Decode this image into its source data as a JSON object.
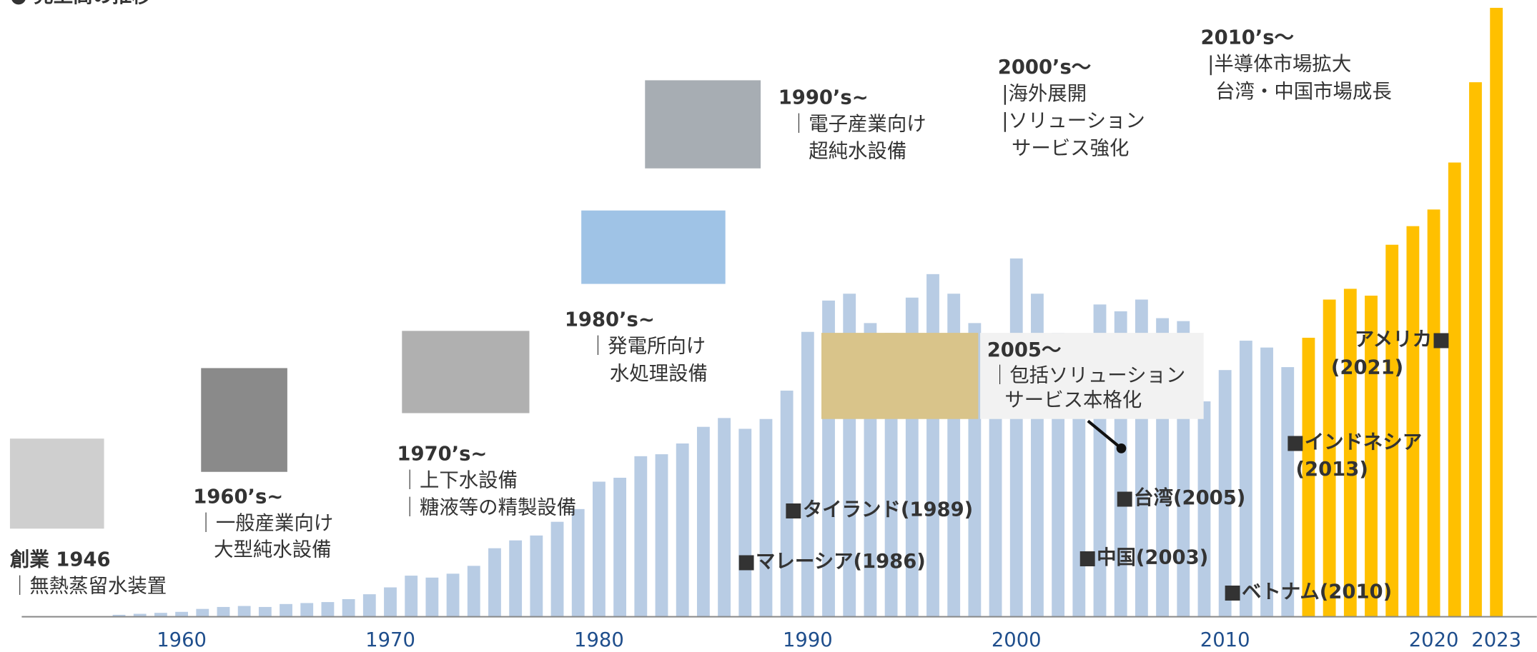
{
  "chart_data": {
    "type": "bar",
    "title": "● 売上高の推移",
    "x": [
      1957,
      1958,
      1959,
      1960,
      1961,
      1962,
      1963,
      1964,
      1965,
      1966,
      1967,
      1968,
      1969,
      1970,
      1971,
      1972,
      1973,
      1974,
      1975,
      1976,
      1977,
      1978,
      1979,
      1980,
      1981,
      1982,
      1983,
      1984,
      1985,
      1986,
      1987,
      1988,
      1989,
      1990,
      1991,
      1992,
      1993,
      1994,
      1995,
      1996,
      1997,
      1998,
      1999,
      2000,
      2001,
      2002,
      2003,
      2004,
      2005,
      2006,
      2007,
      2008,
      2009,
      2010,
      2011,
      2012,
      2013,
      2014,
      2015,
      2016,
      2017,
      2018,
      2019,
      2020,
      2021,
      2022,
      2023
    ],
    "xlim": [
      1956,
      2024
    ],
    "xticks": [
      1960,
      1970,
      1980,
      1990,
      2000,
      2010,
      2020,
      2023
    ],
    "ylim": [
      0,
      630
    ],
    "series": [
      {
        "color": "#b8cce4",
        "values": [
          2,
          3,
          4,
          5,
          8,
          10,
          11,
          10,
          13,
          14,
          15,
          18,
          23,
          30,
          42,
          40,
          44,
          52,
          70,
          78,
          83,
          97,
          110,
          138,
          142,
          164,
          166,
          177,
          194,
          203,
          192,
          202,
          231,
          291,
          323,
          330,
          300,
          290,
          326,
          350,
          330,
          300,
          280,
          366,
          330,
          290,
          285,
          319,
          312,
          324,
          305,
          302,
          220,
          252,
          282,
          275,
          255,
          null,
          null,
          null,
          null,
          null,
          null,
          null,
          null,
          null,
          null
        ]
      },
      {
        "color": "#ffc000",
        "values": [
          null,
          null,
          null,
          null,
          null,
          null,
          null,
          null,
          null,
          null,
          null,
          null,
          null,
          null,
          null,
          null,
          null,
          null,
          null,
          null,
          null,
          null,
          null,
          null,
          null,
          null,
          null,
          null,
          null,
          null,
          null,
          null,
          null,
          null,
          null,
          null,
          null,
          null,
          null,
          null,
          null,
          null,
          null,
          null,
          null,
          null,
          null,
          null,
          null,
          null,
          null,
          null,
          null,
          null,
          null,
          null,
          null,
          285,
          324,
          335,
          328,
          380,
          399,
          416,
          464,
          546,
          622
        ]
      }
    ],
    "annotations": [
      {
        "lines": [
          "創業 1946",
          "｜無熱蒸留水装置"
        ]
      },
      {
        "lines": [
          "1960’s~",
          "｜一般産業向け",
          "大型純水設備"
        ]
      },
      {
        "lines": [
          "1970’s~",
          "｜上下水設備",
          "｜糖液等の精製設備"
        ]
      },
      {
        "lines": [
          "1980’s~",
          "｜発電所向け",
          "水処理設備"
        ]
      },
      {
        "lines": [
          "1990’s~",
          "｜電子産業向け",
          "超純水設備"
        ]
      },
      {
        "lines": [
          "2000’s～",
          "|海外展開",
          "|ソリューション",
          "サービス強化"
        ]
      },
      {
        "lines": [
          "2010’s～",
          "|半導体市場拡大",
          "台湾・中国市場成長"
        ]
      },
      {
        "lines": [
          "2005～",
          "｜包括ソリューション",
          "サービス本格化"
        ]
      },
      {
        "lines": [
          "■タイランド(1989)"
        ]
      },
      {
        "lines": [
          "■マレーシア(1986)"
        ]
      },
      {
        "lines": [
          "■台湾(2005)"
        ]
      },
      {
        "lines": [
          "■中国(2003)"
        ]
      },
      {
        "lines": [
          "■ベトナム(2010)"
        ]
      },
      {
        "lines": [
          "■インドネシア",
          "(2013)"
        ]
      },
      {
        "lines": [
          "アメリカ■",
          "(2021)"
        ]
      }
    ]
  }
}
